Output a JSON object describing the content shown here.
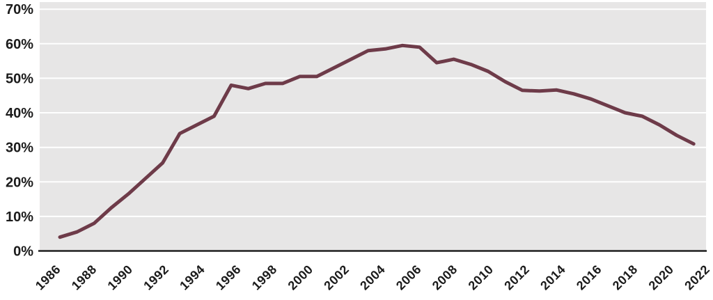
{
  "chart_data": {
    "type": "line",
    "title": "",
    "xlabel": "",
    "ylabel": "",
    "legend": "none",
    "grid": "horizontal white gridlines on light gray plot background",
    "ylim": [
      0,
      70
    ],
    "x": [
      1985,
      1986,
      1987,
      1988,
      1989,
      1990,
      1991,
      1992,
      1993,
      1994,
      1995,
      1996,
      1997,
      1998,
      1999,
      2000,
      2001,
      2002,
      2003,
      2004,
      2005,
      2006,
      2007,
      2008,
      2009,
      2010,
      2011,
      2012,
      2013,
      2014,
      2015,
      2016,
      2017,
      2018,
      2019,
      2020,
      2021,
      2022
    ],
    "values": [
      4,
      5.5,
      8,
      12.5,
      16.5,
      21,
      25.5,
      34,
      36.5,
      39,
      48,
      47,
      48.5,
      48.5,
      50.5,
      50.5,
      53,
      55.5,
      58,
      58.5,
      59.5,
      59,
      54.5,
      55.5,
      54,
      52,
      49,
      46.5,
      46.3,
      46.6,
      45.5,
      44,
      42,
      40,
      39,
      36.5,
      33.5,
      31
    ],
    "y_tick_values": [
      0,
      10,
      20,
      30,
      40,
      50,
      60,
      70
    ],
    "y_tick_labels": [
      "0%",
      "10%",
      "20%",
      "30%",
      "40%",
      "50%",
      "60%",
      "70%"
    ],
    "x_tick_labels": [
      "1986",
      "1988",
      "1990",
      "1992",
      "1994",
      "1996",
      "1998",
      "2000",
      "2002",
      "2004",
      "2006",
      "2008",
      "2010",
      "2012",
      "2014",
      "2016",
      "2018",
      "2020",
      "2022"
    ],
    "colors": {
      "line": "#6e3b49",
      "plot_background": "#e7e6e6",
      "gridline": "#ffffff",
      "axis": "#1f1f1f",
      "tick_text": "#1b1b1b",
      "page_background": "#ffffff"
    }
  }
}
